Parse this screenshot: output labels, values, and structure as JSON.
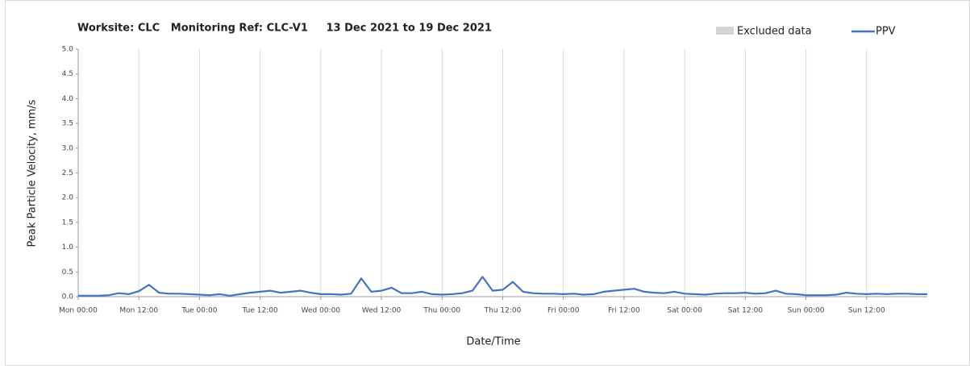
{
  "chart_data": {
    "type": "line",
    "title": "Worksite: CLC   Monitoring Ref: CLC-V1     13 Dec 2021 to 19 Dec 2021",
    "xlabel": "Date/Time",
    "ylabel": "Peak Particle Velocity, mm/s",
    "legend": "top-right",
    "grid": "vertical",
    "excluded": {
      "name": "Excluded data",
      "color": "#d4d4d4"
    },
    "x": [
      0,
      2,
      4,
      6,
      8,
      10,
      12,
      14,
      16,
      18,
      20,
      22,
      24,
      26,
      28,
      30,
      32,
      34,
      36,
      38,
      40,
      42,
      44,
      46,
      48,
      50,
      52,
      54,
      56,
      58,
      60,
      62,
      64,
      66,
      68,
      70,
      72,
      74,
      76,
      78,
      80,
      82,
      84,
      86,
      88,
      90,
      92,
      94,
      96,
      98,
      100,
      102,
      104,
      106,
      108,
      110,
      112,
      114,
      116,
      118,
      120,
      122,
      124,
      126,
      128,
      130,
      132,
      134,
      136,
      138,
      140,
      142,
      144,
      146,
      148,
      150,
      152,
      154,
      156,
      158,
      160,
      162,
      164,
      166,
      168
    ],
    "series": [
      {
        "name": "PPV",
        "color": "#4472c4",
        "values": [
          0.02,
          0.02,
          0.02,
          0.03,
          0.07,
          0.05,
          0.11,
          0.24,
          0.08,
          0.06,
          0.06,
          0.05,
          0.04,
          0.03,
          0.05,
          0.02,
          0.05,
          0.08,
          0.1,
          0.12,
          0.08,
          0.1,
          0.12,
          0.08,
          0.05,
          0.05,
          0.04,
          0.06,
          0.37,
          0.1,
          0.12,
          0.18,
          0.07,
          0.07,
          0.1,
          0.05,
          0.04,
          0.05,
          0.07,
          0.12,
          0.4,
          0.12,
          0.14,
          0.3,
          0.1,
          0.07,
          0.06,
          0.06,
          0.05,
          0.06,
          0.04,
          0.05,
          0.1,
          0.12,
          0.14,
          0.16,
          0.1,
          0.08,
          0.07,
          0.1,
          0.06,
          0.05,
          0.04,
          0.06,
          0.07,
          0.07,
          0.08,
          0.06,
          0.07,
          0.12,
          0.06,
          0.05,
          0.03,
          0.03,
          0.03,
          0.04,
          0.08,
          0.06,
          0.05,
          0.06,
          0.05,
          0.06,
          0.06,
          0.05,
          0.05
        ]
      }
    ],
    "xlim": [
      0,
      168
    ],
    "xticks": [
      {
        "value": 0,
        "label": "Mon 00:00"
      },
      {
        "value": 12,
        "label": "Mon 12:00"
      },
      {
        "value": 24,
        "label": "Tue 00:00"
      },
      {
        "value": 36,
        "label": "Tue 12:00"
      },
      {
        "value": 48,
        "label": "Wed 00:00"
      },
      {
        "value": 60,
        "label": "Wed 12:00"
      },
      {
        "value": 72,
        "label": "Thu 00:00"
      },
      {
        "value": 84,
        "label": "Thu 12:00"
      },
      {
        "value": 96,
        "label": "Fri 00:00"
      },
      {
        "value": 108,
        "label": "Fri 12:00"
      },
      {
        "value": 120,
        "label": "Sat 00:00"
      },
      {
        "value": 132,
        "label": "Sat 12:00"
      },
      {
        "value": 144,
        "label": "Sun 00:00"
      },
      {
        "value": 156,
        "label": "Sun 12:00"
      }
    ],
    "ylim": [
      0,
      5
    ],
    "yticks": [
      {
        "value": 0,
        "label": "0.0"
      },
      {
        "value": 0.5,
        "label": "0.5"
      },
      {
        "value": 1,
        "label": "1.0"
      },
      {
        "value": 1.5,
        "label": "1.5"
      },
      {
        "value": 2,
        "label": "2.0"
      },
      {
        "value": 2.5,
        "label": "2.5"
      },
      {
        "value": 3,
        "label": "3.0"
      },
      {
        "value": 3.5,
        "label": "3.5"
      },
      {
        "value": 4,
        "label": "4.0"
      },
      {
        "value": 4.5,
        "label": "4.5"
      },
      {
        "value": 5,
        "label": "5.0"
      }
    ]
  }
}
